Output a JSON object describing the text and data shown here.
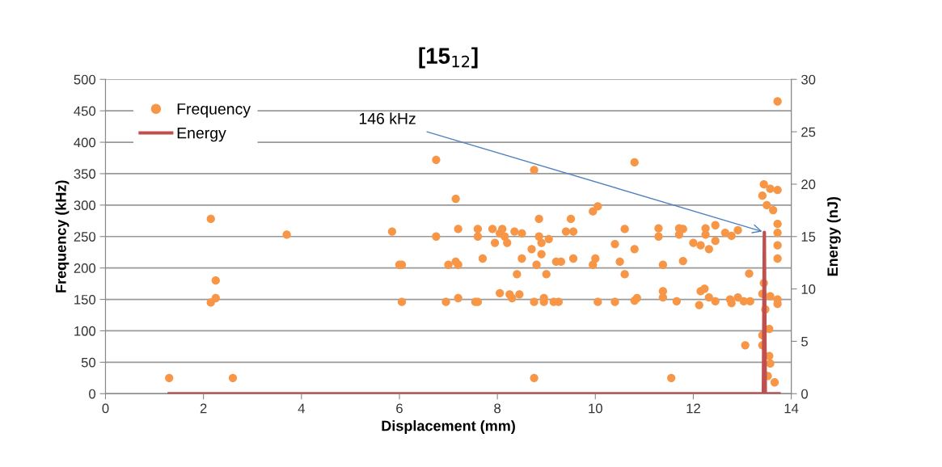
{
  "chart_data": {
    "type": "scatter",
    "title": "[15$_{12}$]",
    "xlabel": "Displacement (mm)",
    "ylabel": "Frequency (kHz)",
    "y2label": "Energy (nJ)",
    "xlim": [
      0,
      14
    ],
    "xticks": [
      0,
      2,
      4,
      6,
      8,
      10,
      12,
      14
    ],
    "ylim": [
      0,
      500
    ],
    "yticks": [
      0,
      50,
      100,
      150,
      200,
      250,
      300,
      350,
      400,
      450,
      500
    ],
    "y2lim": [
      0,
      30
    ],
    "y2ticks": [
      0,
      5,
      10,
      15,
      20,
      25,
      30
    ],
    "grid": "y",
    "legend": "top left",
    "annotations": [
      {
        "text": "146 kHz",
        "x": 13.45,
        "y": 257
      }
    ],
    "series": [
      {
        "name": "Frequency",
        "marker": "circle",
        "color": "#f79646",
        "x": [
          1.3,
          2.15,
          2.15,
          2.25,
          2.25,
          2.6,
          3.7,
          5.85,
          6.0,
          6.05,
          6.05,
          6.75,
          6.75,
          6.95,
          7.0,
          7.15,
          7.15,
          7.2,
          7.2,
          7.2,
          7.55,
          7.6,
          7.6,
          7.6,
          7.7,
          7.9,
          7.95,
          8.05,
          8.05,
          8.1,
          8.15,
          8.2,
          8.25,
          8.3,
          8.35,
          8.4,
          8.45,
          8.5,
          8.5,
          8.7,
          8.75,
          8.75,
          8.75,
          8.8,
          8.85,
          8.85,
          8.9,
          8.9,
          8.95,
          8.95,
          9.0,
          9.05,
          9.15,
          9.2,
          9.25,
          9.3,
          9.4,
          9.5,
          9.55,
          9.55,
          9.95,
          9.95,
          10.05,
          10.05,
          10.0,
          10.4,
          10.5,
          10.4,
          10.6,
          10.6,
          10.8,
          10.8,
          10.8,
          10.85,
          11.29,
          11.29,
          11.38,
          11.38,
          11.38,
          11.55,
          11.66,
          11.71,
          11.71,
          11.79,
          11.79,
          12.0,
          12.12,
          12.15,
          12.15,
          12.23,
          12.25,
          12.25,
          12.32,
          12.32,
          12.45,
          12.45,
          12.45,
          12.65,
          12.75,
          12.78,
          12.78,
          12.91,
          12.91,
          13.03,
          13.06,
          13.14,
          13.16,
          13.41,
          13.41,
          13.41,
          13.41,
          13.44,
          13.44,
          13.47,
          13.5,
          13.52,
          13.55,
          13.55,
          13.57,
          13.57,
          13.57,
          13.63,
          13.66,
          13.72,
          13.72,
          13.72,
          13.72,
          13.72,
          13.72,
          13.72,
          13.72
        ],
        "values": [
          25,
          278,
          145,
          152,
          180,
          25,
          253,
          258,
          205,
          205,
          146,
          372,
          250,
          146,
          205,
          310,
          210,
          205,
          262,
          152,
          146,
          146,
          262,
          250,
          215,
          262,
          240,
          160,
          255,
          262,
          250,
          240,
          158,
          152,
          258,
          190,
          158,
          215,
          255,
          230,
          356,
          146,
          25,
          205,
          250,
          278,
          240,
          222,
          152,
          146,
          190,
          246,
          146,
          210,
          146,
          210,
          258,
          278,
          215,
          258,
          290,
          205,
          298,
          146,
          215,
          238,
          210,
          146,
          190,
          262,
          368,
          230,
          148,
          152,
          263,
          250,
          163,
          153,
          205,
          25,
          147,
          263,
          253,
          262,
          211,
          240,
          141,
          236,
          163,
          167,
          263,
          253,
          230,
          153,
          268,
          243,
          147,
          256,
          150,
          251,
          144,
          260,
          153,
          147,
          77,
          191,
          147,
          315,
          159,
          93,
          77,
          333,
          176,
          134,
          300,
          28,
          103,
          60,
          326,
          155,
          48,
          292,
          18,
          465,
          324,
          270,
          256,
          236,
          215,
          150,
          143
        ]
      },
      {
        "name": "Energy",
        "type": "line",
        "marker": "none",
        "axis": "y2",
        "color": "#c0504d",
        "x": [
          1.3,
          13.43,
          13.45,
          13.47,
          13.75
        ],
        "values": [
          0,
          0,
          15.4,
          0,
          0
        ]
      }
    ]
  }
}
